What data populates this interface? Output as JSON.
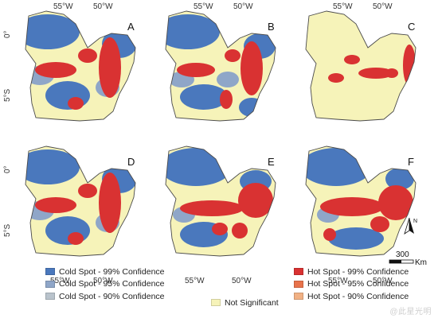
{
  "colors": {
    "cold99": "#4a78bd",
    "cold95": "#8fa6c8",
    "cold90": "#b9c3cc",
    "not_significant": "#f6f3b9",
    "hot99": "#d93232",
    "hot95": "#e8734b",
    "hot90": "#f1b184",
    "outline": "#4a4a4a"
  },
  "axes": {
    "top_lon_left": "55°W",
    "top_lon_right": "50°W",
    "bottom_lon_left": "55°W",
    "bottom_lon_right": "50°W",
    "lat_top": "0°",
    "lat_bottom": "5°S"
  },
  "panels": [
    {
      "label": "A",
      "hot_pattern": "ring"
    },
    {
      "label": "B",
      "hot_pattern": "ring_broken"
    },
    {
      "label": "C",
      "hot_pattern": "band_east"
    },
    {
      "label": "D",
      "hot_pattern": "ring"
    },
    {
      "label": "E",
      "hot_pattern": "wide"
    },
    {
      "label": "F",
      "hot_pattern": "wide_ring"
    }
  ],
  "north_arrow": {
    "letter": "N"
  },
  "scale_bar": {
    "value": "300",
    "unit": "Km"
  },
  "legend": {
    "cold": [
      {
        "label": "Cold Spot - 99% Confidence",
        "color_key": "cold99"
      },
      {
        "label": "Cold Spot - 95% Confidence",
        "color_key": "cold95"
      },
      {
        "label": "Cold Spot - 90% Confidence",
        "color_key": "cold90"
      }
    ],
    "neutral": [
      {
        "label": "Not Significant",
        "color_key": "not_significant"
      }
    ],
    "hot": [
      {
        "label": "Hot Spot - 99% Confidence",
        "color_key": "hot99"
      },
      {
        "label": "Hot Spot - 95% Confidence",
        "color_key": "hot95"
      },
      {
        "label": "Hot Spot - 90% Confidence",
        "color_key": "hot90"
      }
    ]
  },
  "watermark": "@此星光明"
}
